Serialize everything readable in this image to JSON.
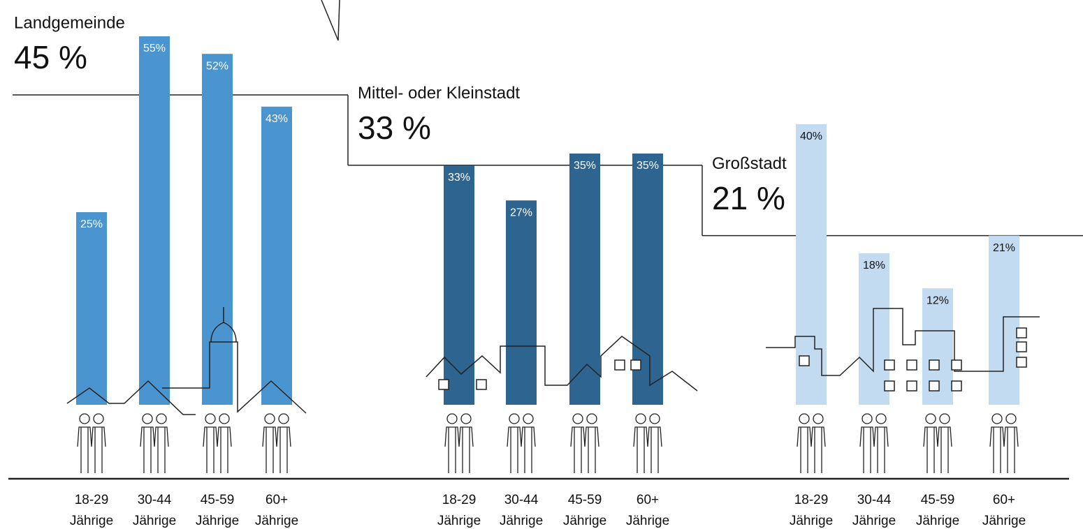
{
  "chart_data": {
    "type": "grouped-bar",
    "groups": [
      {
        "name": "Landgemeinde",
        "value": 45,
        "value_label": "45 %",
        "color": "#4a94d0",
        "categories": [
          "18-29 Jährige",
          "30-44 Jährige",
          "45-59 Jährige",
          "60+ Jährige"
        ],
        "values": [
          25,
          55,
          52,
          43
        ],
        "value_labels": [
          "25%",
          "55%",
          "52%",
          "43%"
        ]
      },
      {
        "name": "Mittel- oder Kleinstadt",
        "value": 33,
        "value_label": "33 %",
        "color": "#2e6490",
        "categories": [
          "18-29 Jährige",
          "30-44 Jährige",
          "45-59 Jährige",
          "60+ Jährige"
        ],
        "values": [
          33,
          27,
          35,
          35
        ],
        "value_labels": [
          "33%",
          "27%",
          "35%",
          "35%"
        ]
      },
      {
        "name": "Großstadt",
        "value": 21,
        "value_label": "21 %",
        "color": "#c3dbf1",
        "categories": [
          "18-29 Jährige",
          "30-44 Jährige",
          "45-59 Jährige",
          "60+ Jährige"
        ],
        "values": [
          40,
          18,
          12,
          21
        ],
        "value_labels": [
          "40%",
          "18%",
          "12%",
          "21%"
        ]
      }
    ]
  }
}
